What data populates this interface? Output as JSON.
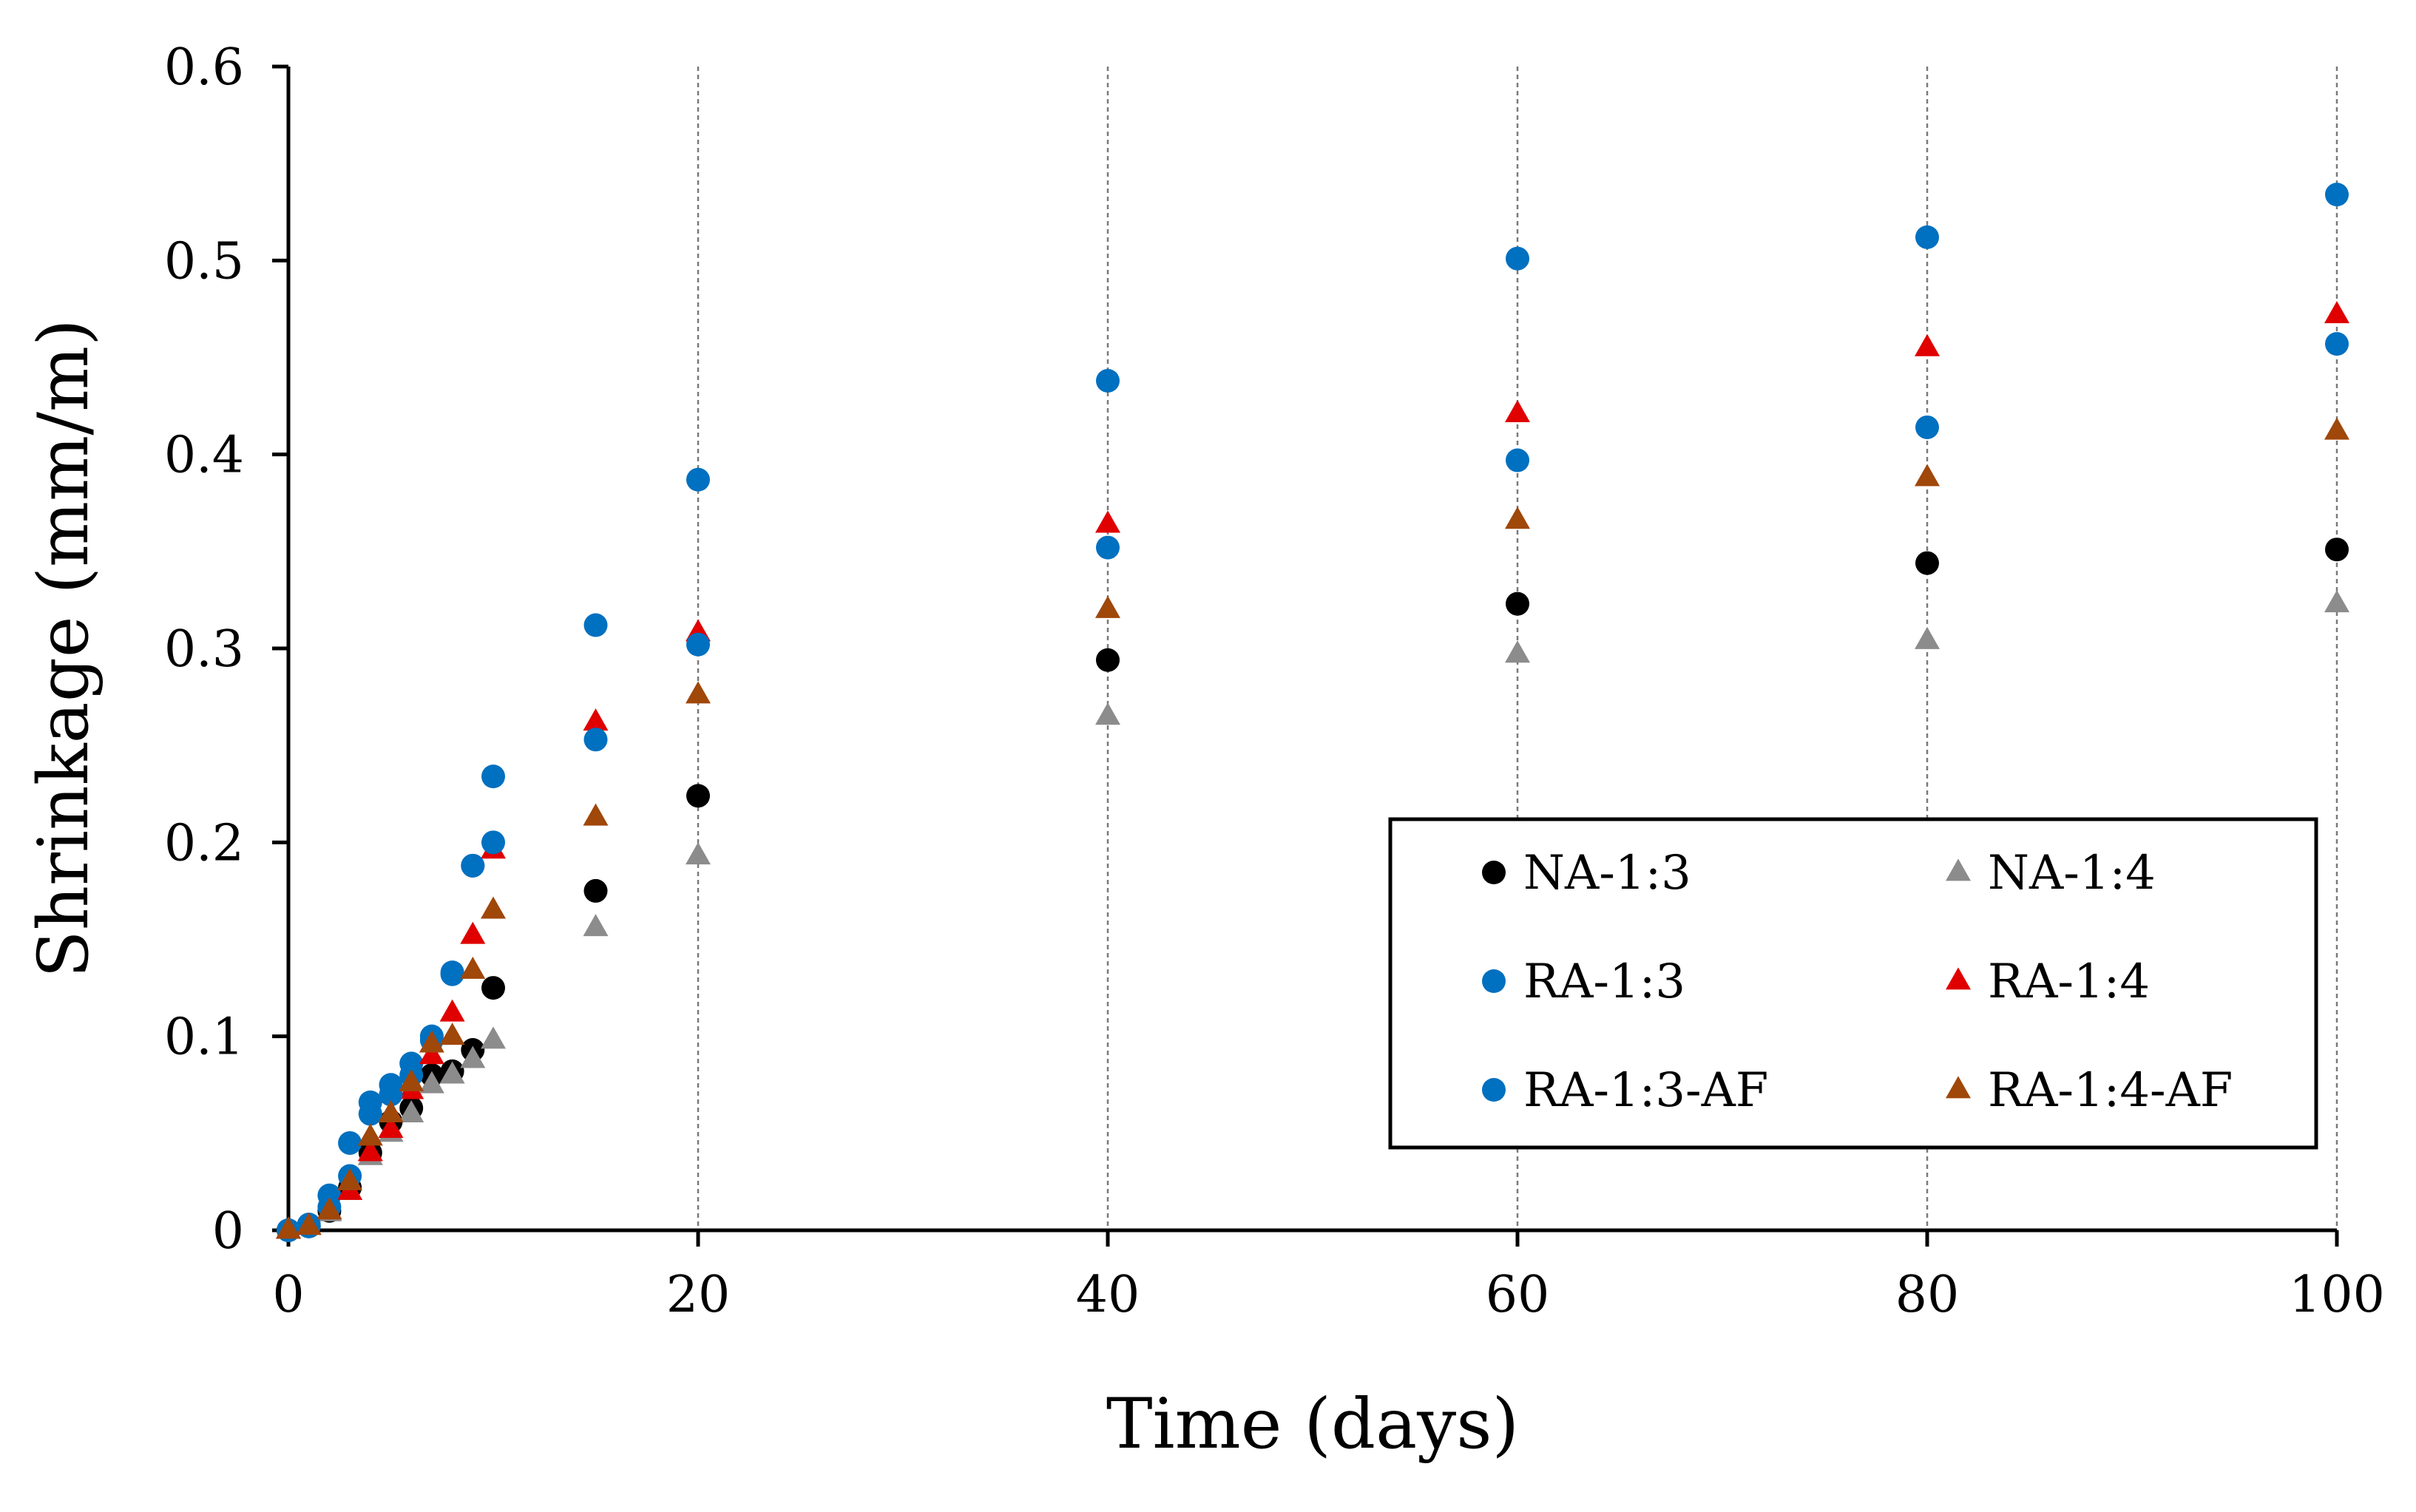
{
  "chart_data": {
    "type": "scatter",
    "title": "",
    "xlabel": "Time (days)",
    "ylabel": "Shrinkage (mm/m)",
    "xlim": [
      0,
      100
    ],
    "ylim": [
      0,
      0.6
    ],
    "xticks": [
      0,
      20,
      40,
      60,
      80,
      100
    ],
    "xtick_labels": [
      "0",
      "20",
      "40",
      "60",
      "80",
      "100"
    ],
    "yticks": [
      0,
      0.1,
      0.2,
      0.3,
      0.4,
      0.5,
      0.6
    ],
    "ytick_labels": [
      "0",
      "0.1",
      "0.2",
      "0.3",
      "0.4",
      "0.5",
      "0.6"
    ],
    "vertical_gridlines": [
      20,
      40,
      60,
      80,
      100
    ],
    "legend_position": "lower-right",
    "series": [
      {
        "name": "NA-1:3",
        "marker": "circle",
        "color": "#000000",
        "points": [
          [
            0,
            0
          ],
          [
            1,
            0.002
          ],
          [
            2,
            0.01
          ],
          [
            3,
            0.022
          ],
          [
            4,
            0.04
          ],
          [
            5,
            0.056
          ],
          [
            6,
            0.063
          ],
          [
            7,
            0.08
          ],
          [
            8,
            0.082
          ],
          [
            9,
            0.093
          ],
          [
            10,
            0.125
          ],
          [
            15,
            0.175
          ],
          [
            20,
            0.224
          ],
          [
            40,
            0.294
          ],
          [
            60,
            0.323
          ],
          [
            80,
            0.344
          ],
          [
            100,
            0.351
          ]
        ]
      },
      {
        "name": "NA-1:4",
        "marker": "triangle",
        "color": "#8c8c8c",
        "points": [
          [
            0,
            0
          ],
          [
            1,
            0.002
          ],
          [
            2,
            0.009
          ],
          [
            3,
            0.02
          ],
          [
            4,
            0.038
          ],
          [
            5,
            0.05
          ],
          [
            6,
            0.06
          ],
          [
            7,
            0.075
          ],
          [
            8,
            0.08
          ],
          [
            9,
            0.088
          ],
          [
            10,
            0.098
          ],
          [
            15,
            0.156
          ],
          [
            20,
            0.193
          ],
          [
            40,
            0.265
          ],
          [
            60,
            0.297
          ],
          [
            80,
            0.304
          ],
          [
            100,
            0.323
          ]
        ]
      },
      {
        "name": "RA-1:3",
        "marker": "circle",
        "color": "#0070c0",
        "points": [
          [
            0,
            0
          ],
          [
            1,
            0.003
          ],
          [
            2,
            0.018
          ],
          [
            3,
            0.045
          ],
          [
            4,
            0.066
          ],
          [
            5,
            0.075
          ],
          [
            6,
            0.086
          ],
          [
            7,
            0.1
          ],
          [
            8,
            0.133
          ],
          [
            9,
            0.188
          ],
          [
            10,
            0.234
          ],
          [
            15,
            0.312
          ],
          [
            20,
            0.387
          ],
          [
            40,
            0.438
          ],
          [
            60,
            0.501
          ],
          [
            80,
            0.512
          ],
          [
            100,
            0.534
          ]
        ]
      },
      {
        "name": "RA-1:4",
        "marker": "triangle",
        "color": "#e00000",
        "points": [
          [
            0,
            0
          ],
          [
            1,
            0.002
          ],
          [
            2,
            0.01
          ],
          [
            3,
            0.02
          ],
          [
            4,
            0.04
          ],
          [
            5,
            0.052
          ],
          [
            6,
            0.072
          ],
          [
            7,
            0.09
          ],
          [
            8,
            0.112
          ],
          [
            9,
            0.152
          ],
          [
            10,
            0.196
          ],
          [
            15,
            0.262
          ],
          [
            20,
            0.308
          ],
          [
            40,
            0.364
          ],
          [
            60,
            0.421
          ],
          [
            80,
            0.455
          ],
          [
            100,
            0.472
          ]
        ]
      },
      {
        "name": "RA-1:3-AF",
        "marker": "circle",
        "color": "#0070c0",
        "points": [
          [
            0,
            0
          ],
          [
            1,
            0.002
          ],
          [
            2,
            0.012
          ],
          [
            3,
            0.028
          ],
          [
            4,
            0.06
          ],
          [
            5,
            0.07
          ],
          [
            6,
            0.08
          ],
          [
            7,
            0.098
          ],
          [
            8,
            0.132
          ],
          [
            9,
            0.188
          ],
          [
            10,
            0.2
          ],
          [
            15,
            0.253
          ],
          [
            20,
            0.302
          ],
          [
            40,
            0.352
          ],
          [
            60,
            0.397
          ],
          [
            80,
            0.414
          ],
          [
            100,
            0.457
          ]
        ]
      },
      {
        "name": "RA-1:4-AF",
        "marker": "triangle",
        "color": "#a0470a",
        "points": [
          [
            0,
            0
          ],
          [
            1,
            0.002
          ],
          [
            2,
            0.01
          ],
          [
            3,
            0.025
          ],
          [
            4,
            0.048
          ],
          [
            5,
            0.06
          ],
          [
            6,
            0.076
          ],
          [
            7,
            0.096
          ],
          [
            8,
            0.1
          ],
          [
            9,
            0.134
          ],
          [
            10,
            0.165
          ],
          [
            15,
            0.213
          ],
          [
            20,
            0.276
          ],
          [
            40,
            0.32
          ],
          [
            60,
            0.366
          ],
          [
            80,
            0.388
          ],
          [
            100,
            0.412
          ]
        ]
      }
    ]
  }
}
